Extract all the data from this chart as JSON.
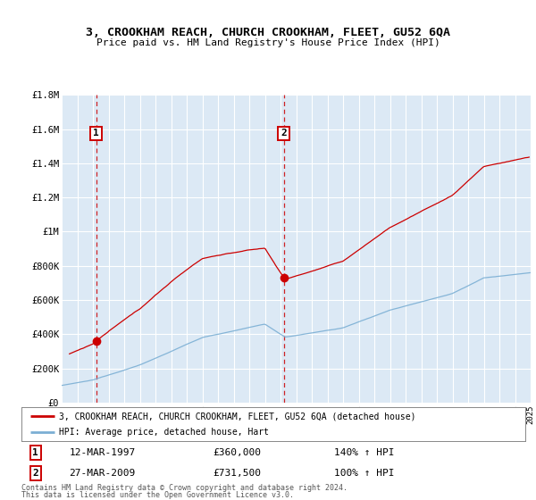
{
  "title": "3, CROOKHAM REACH, CHURCH CROOKHAM, FLEET, GU52 6QA",
  "subtitle": "Price paid vs. HM Land Registry's House Price Index (HPI)",
  "legend_line1": "3, CROOKHAM REACH, CHURCH CROOKHAM, FLEET, GU52 6QA (detached house)",
  "legend_line2": "HPI: Average price, detached house, Hart",
  "sale1_date": "12-MAR-1997",
  "sale1_price": 360000,
  "sale1_label": "140% ↑ HPI",
  "sale2_date": "27-MAR-2009",
  "sale2_price": 731500,
  "sale2_label": "100% ↑ HPI",
  "footer1": "Contains HM Land Registry data © Crown copyright and database right 2024.",
  "footer2": "This data is licensed under the Open Government Licence v3.0.",
  "plot_bg_color": "#dce9f5",
  "red_line_color": "#cc0000",
  "blue_line_color": "#7bafd4",
  "xmin": 1995,
  "xmax": 2025,
  "ymin": 0,
  "ymax": 1800000,
  "yticks": [
    0,
    200000,
    400000,
    600000,
    800000,
    1000000,
    1200000,
    1400000,
    1600000,
    1800000
  ],
  "ytick_labels": [
    "£0",
    "£200K",
    "£400K",
    "£600K",
    "£800K",
    "£1M",
    "£1.2M",
    "£1.4M",
    "£1.6M",
    "£1.8M"
  ],
  "sale1_x": 1997.2,
  "sale1_y": 360000,
  "sale2_x": 2009.2,
  "sale2_y": 731500
}
